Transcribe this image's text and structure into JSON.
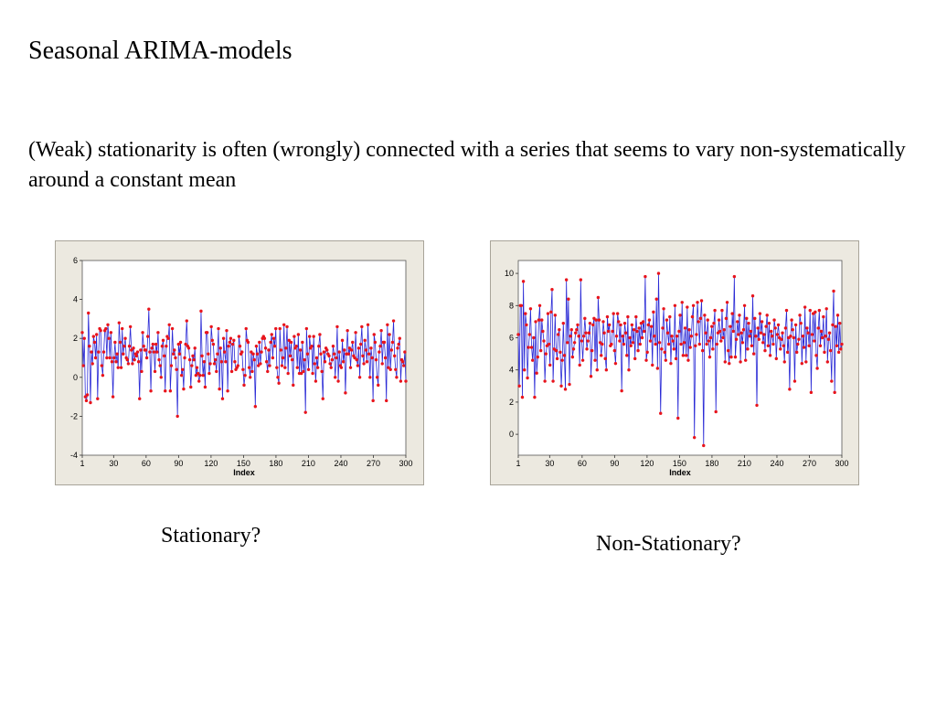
{
  "slide": {
    "title": "Seasonal ARIMA-models",
    "intro": "(Weak) stationarity is often (wrongly) connected with a series that seems to vary non-systematically around a constant mean",
    "caption_left": "Stationary?",
    "caption_right": "Non-Stationary?"
  },
  "colors": {
    "line": "#2b2bd6",
    "marker": "#e8141c",
    "plot_background": "#ffffff",
    "panel_background": "#ece9e0"
  },
  "chart_data": [
    {
      "type": "line",
      "series_kind": "time series, N=300",
      "xlabel": "Index",
      "ylabel": "",
      "xticks": [
        1,
        30,
        60,
        90,
        120,
        150,
        180,
        210,
        240,
        270,
        300
      ],
      "yticks": [
        -4,
        -2,
        0,
        2,
        4,
        6
      ],
      "xlim": [
        1,
        300
      ],
      "ylim": [
        -4,
        6
      ],
      "grid": false,
      "legend": "none",
      "series": [
        {
          "markers": true,
          "values": [
            2.3,
            0.6,
            2.0,
            -1.0,
            -1.2,
            -0.9,
            3.3,
            1.6,
            -1.3,
            1.3,
            0.7,
            2.1,
            1.8,
            1.0,
            2.2,
            -1.1,
            1.3,
            2.5,
            2.4,
            0.6,
            0.1,
            1.3,
            2.4,
            2.5,
            1.0,
            2.7,
            2.0,
            1.0,
            2.3,
            0.8,
            -1.0,
            1.0,
            1.8,
            0.8,
            1.2,
            0.5,
            2.8,
            1.8,
            0.5,
            2.5,
            1.2,
            1.6,
            2.0,
            1.0,
            0.9,
            0.7,
            1.6,
            2.6,
            1.4,
            0.7,
            1.5,
            0.9,
            1.2,
            1.1,
            1.3,
            0.8,
            -1.1,
            1.4,
            0.3,
            2.3,
            1.6,
            1.4,
            1.4,
            1.0,
            2.1,
            3.5,
            1.3,
            -0.7,
            1.5,
            1.7,
            1.3,
            0.3,
            1.7,
            1.3,
            2.3,
            0.9,
            0.6,
            0.0,
            1.6,
            1.9,
            1.1,
            -0.7,
            1.6,
            2.1,
            2.0,
            2.7,
            -0.7,
            0.6,
            2.5,
            1.2,
            1.4,
            1.0,
            0.4,
            -2.0,
            1.7,
            1.2,
            1.8,
            0.1,
            0.4,
            -0.6,
            1.0,
            1.7,
            2.9,
            1.6,
            1.5,
            0.9,
            -0.5,
            0.6,
            1.1,
            0.9,
            1.5,
            0.1,
            0.5,
            0.2,
            -0.2,
            0.1,
            3.4,
            1.1,
            0.1,
            0.8,
            -0.5,
            2.3,
            2.3,
            1.2,
            0.2,
            0.7,
            2.6,
            1.9,
            1.7,
            0.7,
            0.9,
            0.3,
            1.2,
            2.5,
            -0.6,
            1.5,
            0.8,
            -1.1,
            2.0,
            1.3,
            0.8,
            2.4,
            -0.7,
            1.6,
            1.8,
            2.0,
            0.3,
            1.7,
            1.9,
            0.8,
            0.4,
            0.5,
            0.6,
            2.1,
            1.6,
            1.2,
            1.3,
            0.4,
            -0.4,
            0.1,
            2.5,
            1.9,
            1.8,
            0.5,
            0.0,
            1.3,
            0.3,
            1.2,
            0.9,
            -1.5,
            1.6,
            1.2,
            0.6,
            1.8,
            0.7,
            1.3,
            2.0,
            2.1,
            2.0,
            1.5,
            0.8,
            0.3,
            1.4,
            0.6,
            1.8,
            2.2,
            1.0,
            2.0,
            1.6,
            2.5,
            0.5,
            0.0,
            -0.3,
            2.5,
            1.4,
            0.6,
            1.0,
            2.7,
            0.5,
            1.5,
            2.6,
            0.2,
            1.9,
            1.1,
            1.8,
            0.9,
            -0.4,
            2.1,
            1.5,
            1.6,
            0.5,
            2.2,
            0.2,
            1.4,
            0.2,
            1.8,
            0.3,
            0.9,
            -1.8,
            2.5,
            1.2,
            0.4,
            2.1,
            1.5,
            1.6,
            0.2,
            2.1,
            0.7,
            -0.2,
            1.0,
            0.5,
            1.6,
            2.2,
            1.2,
            0.3,
            -1.1,
            1.3,
            0.8,
            1.5,
            1.4,
            1.2,
            1.1,
            0.7,
            0.5,
            0.9,
            1.6,
            1.2,
            0.0,
            1.0,
            2.6,
            -0.2,
            1.3,
            0.6,
            0.5,
            1.9,
            0.8,
            1.4,
            -0.8,
            1.2,
            2.4,
            1.2,
            1.5,
            0.5,
            1.4,
            1.8,
            1.1,
            1.0,
            2.3,
            0.9,
            0.6,
            1.5,
            0.0,
            1.7,
            2.6,
            1.1,
            0.7,
            1.9,
            1.4,
            0.8,
            2.7,
            1.2,
            0.0,
            1.5,
            1.0,
            -1.2,
            2.2,
            1.8,
            0.9,
            0.0,
            -0.4,
            1.3,
            1.6,
            2.4,
            0.7,
            1.8,
            1.8,
            1.0,
            -1.2,
            2.7,
            0.5,
            2.2,
            0.4,
            1.4,
            1.8,
            2.9,
            1.1,
            0.4,
            0.0,
            1.5,
            1.7,
            2.0,
            -0.2,
            0.9,
            0.8,
            0.6,
            1.3,
            -0.2
          ]
        }
      ]
    },
    {
      "type": "line",
      "series_kind": "time series, N=300",
      "xlabel": "Index",
      "ylabel": "",
      "xticks": [
        1,
        30,
        60,
        90,
        120,
        150,
        180,
        210,
        240,
        270,
        300
      ],
      "yticks": [
        0,
        2,
        4,
        6,
        8,
        10
      ],
      "xlim": [
        1,
        300
      ],
      "ylim": [
        -1.3,
        10.8
      ],
      "grid": false,
      "legend": "none",
      "series": [
        {
          "markers": true,
          "values": [
            6.2,
            3.0,
            8.0,
            8.0,
            2.3,
            9.5,
            4.0,
            7.5,
            6.8,
            3.5,
            5.4,
            6.2,
            7.8,
            5.4,
            4.6,
            6.0,
            2.3,
            7.0,
            3.8,
            4.8,
            7.1,
            8.0,
            5.2,
            7.1,
            6.4,
            5.8,
            3.3,
            5.0,
            5.5,
            7.5,
            5.6,
            4.3,
            7.6,
            9.0,
            3.3,
            5.3,
            7.4,
            5.2,
            4.7,
            6.2,
            6.5,
            5.1,
            3.0,
            4.6,
            6.9,
            4.9,
            2.8,
            9.6,
            5.7,
            8.4,
            3.1,
            6.1,
            6.5,
            4.8,
            5.3,
            5.7,
            6.3,
            6.5,
            6.8,
            6.1,
            4.3,
            9.6,
            5.8,
            4.6,
            6.1,
            7.2,
            6.3,
            5.3,
            5.8,
            6.3,
            6.9,
            3.6,
            5.2,
            6.8,
            7.2,
            4.6,
            7.1,
            4.0,
            8.5,
            7.1,
            5.7,
            4.9,
            5.6,
            7.0,
            6.3,
            4.7,
            4.0,
            7.3,
            6.4,
            6.8,
            5.5,
            5.6,
            6.4,
            7.5,
            5.2,
            4.4,
            6.1,
            7.5,
            7.0,
            5.8,
            6.8,
            2.7,
            6.1,
            5.6,
            6.9,
            6.3,
            4.9,
            7.3,
            4.0,
            6.0,
            5.5,
            6.8,
            5.7,
            6.5,
            4.7,
            7.3,
            6.4,
            5.2,
            6.6,
            5.6,
            6.9,
            6.0,
            7.0,
            6.4,
            9.8,
            4.6,
            5.1,
            6.8,
            7.1,
            5.8,
            6.7,
            4.3,
            7.6,
            6.1,
            5.6,
            8.4,
            4.1,
            10.0,
            5.7,
            1.3,
            5.3,
            6.6,
            7.8,
            5.1,
            4.6,
            7.1,
            6.3,
            5.6,
            7.3,
            4.4,
            6.1,
            5.8,
            5.3,
            8.0,
            4.7,
            6.1,
            1.0,
            6.4,
            7.4,
            5.6,
            8.2,
            4.9,
            5.7,
            6.6,
            4.9,
            7.9,
            4.6,
            6.5,
            5.4,
            6.1,
            7.3,
            8.0,
            -0.2,
            5.5,
            6.2,
            8.2,
            7.0,
            5.6,
            7.2,
            8.3,
            5.2,
            -0.7,
            7.4,
            6.3,
            5.6,
            7.1,
            5.8,
            4.8,
            6.0,
            6.7,
            5.3,
            6.9,
            7.7,
            1.4,
            5.6,
            6.3,
            7.1,
            6.4,
            5.8,
            7.7,
            6.0,
            6.5,
            4.5,
            7.2,
            8.2,
            5.2,
            4.4,
            6.7,
            4.8,
            7.5,
            6.4,
            9.8,
            4.8,
            5.9,
            7.0,
            6.2,
            7.4,
            4.5,
            6.3,
            5.7,
            6.5,
            8.0,
            4.6,
            7.2,
            5.3,
            6.9,
            6.1,
            6.4,
            5.5,
            8.6,
            5.0,
            7.2,
            6.1,
            1.8,
            6.6,
            5.9,
            7.5,
            6.3,
            7.0,
            5.7,
            6.2,
            5.2,
            6.7,
            7.4,
            5.5,
            6.9,
            4.9,
            6.4,
            6.1,
            5.6,
            7.1,
            6.6,
            4.7,
            6.2,
            6.8,
            6.0,
            5.3,
            5.9,
            6.3,
            5.5,
            4.5,
            6.6,
            7.7,
            5.1,
            6.0,
            2.8,
            6.1,
            7.1,
            6.5,
            6.0,
            3.3,
            6.8,
            5.1,
            5.6,
            5.9,
            7.4,
            6.9,
            4.4,
            6.1,
            5.4,
            7.9,
            4.5,
            6.6,
            6.3,
            5.5,
            7.7,
            2.6,
            6.2,
            7.5,
            5.8,
            7.6,
            4.9,
            4.1,
            6.6,
            7.7,
            5.5,
            6.4,
            6.0,
            7.3,
            5.1,
            6.1,
            7.8,
            4.5,
            5.9,
            6.3,
            5.2,
            3.3,
            6.8,
            8.9,
            2.6,
            6.7,
            5.5,
            7.4,
            5.1,
            6.9,
            5.3,
            5.6
          ]
        }
      ]
    }
  ]
}
